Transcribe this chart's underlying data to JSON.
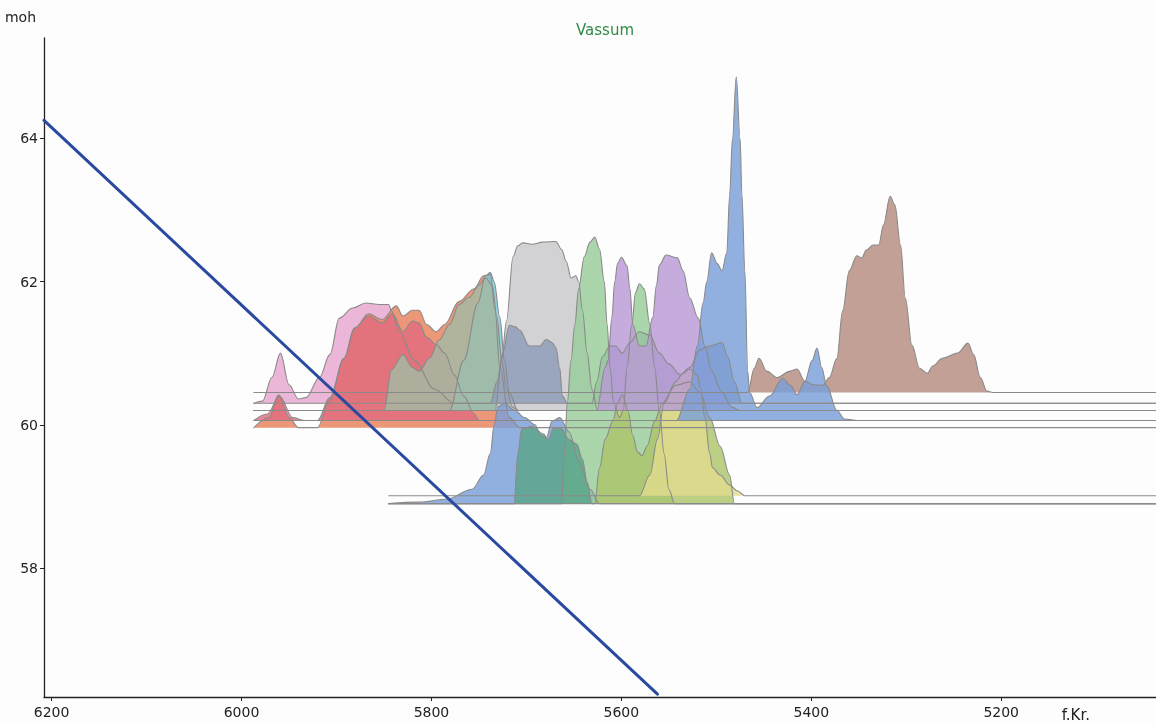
{
  "chart_data": {
    "type": "area",
    "title": "Vassum",
    "xlabel": "f.Kr.",
    "ylabel": "moh",
    "xlim": [
      6208,
      5037
    ],
    "ylim": [
      56.2,
      65.4
    ],
    "xticks": [
      6200,
      6000,
      5800,
      5600,
      5400,
      5200
    ],
    "yticks": [
      58,
      60,
      62,
      64
    ],
    "series": [
      {
        "color": "#b58b7e",
        "x": [
          5987,
          5467,
          5460,
          5455,
          5447,
          5436,
          5422,
          5415,
          5407,
          5398,
          5388,
          5381,
          5373,
          5367,
          5360,
          5352,
          5347,
          5342,
          5335,
          5329,
          5324,
          5317,
          5312,
          5306,
          5301,
          5294,
          5286,
          5278,
          5272,
          5262,
          5246,
          5235,
          5229,
          5222,
          5215,
          5209,
          5037
        ],
        "values": [
          60.45,
          60.45,
          60.79,
          60.93,
          60.75,
          60.66,
          60.75,
          60.78,
          60.61,
          60.56,
          60.55,
          60.66,
          60.93,
          61.59,
          62.15,
          62.36,
          62.33,
          62.44,
          62.51,
          62.51,
          62.79,
          63.19,
          63.07,
          62.51,
          61.77,
          61.11,
          60.79,
          60.72,
          60.82,
          60.93,
          61.0,
          61.14,
          60.98,
          60.66,
          60.47,
          60.45,
          60.45
        ]
      },
      {
        "color": "#e8a6d0",
        "x": [
          5987,
          5978,
          5968,
          5959,
          5950,
          5940,
          5932,
          5918,
          5907,
          5897,
          5883,
          5869,
          5855,
          5845,
          5842,
          5834,
          5818,
          5797,
          5776,
          5037
        ],
        "values": [
          60.3,
          60.33,
          60.66,
          61.0,
          60.56,
          60.36,
          60.38,
          60.66,
          60.98,
          61.49,
          61.63,
          61.7,
          61.68,
          61.68,
          61.59,
          61.3,
          60.9,
          60.5,
          60.3,
          60.3
        ]
      },
      {
        "color": "#e8805a",
        "x": [
          5987,
          5971,
          5961,
          5950,
          5940,
          5920,
          5907,
          5892,
          5881,
          5866,
          5852,
          5837,
          5830,
          5820,
          5813,
          5805,
          5795,
          5786,
          5771,
          5755,
          5745,
          5738,
          5733,
          5728,
          5718,
          5707,
          5037
        ],
        "values": [
          59.96,
          60.1,
          60.42,
          60.1,
          59.96,
          59.96,
          60.35,
          60.93,
          61.35,
          61.55,
          61.47,
          61.66,
          61.52,
          61.6,
          61.6,
          61.4,
          61.3,
          61.4,
          61.72,
          61.9,
          62.08,
          62.1,
          61.6,
          60.8,
          60.1,
          59.96,
          59.96
        ]
      },
      {
        "color": "#e06c7e",
        "x": [
          5987,
          5973,
          5960,
          5946,
          5934,
          5920,
          5907,
          5892,
          5881,
          5866,
          5852,
          5841,
          5830,
          5820,
          5813,
          5805,
          5795,
          5786,
          5776,
          5766,
          5755,
          5750,
          5037
        ],
        "values": [
          60.06,
          60.15,
          60.4,
          60.1,
          60.06,
          60.06,
          60.38,
          60.93,
          61.35,
          61.52,
          61.42,
          61.55,
          61.3,
          61.45,
          61.42,
          61.22,
          61.12,
          61.0,
          60.7,
          60.4,
          60.15,
          60.06,
          60.06
        ]
      },
      {
        "color": "#78c8d8",
        "x": [
          5987,
          5781,
          5766,
          5751,
          5743,
          5738,
          5734,
          5728,
          5723,
          5718,
          5709,
          5037
        ],
        "values": [
          60.2,
          60.2,
          60.9,
          61.7,
          62.08,
          62.13,
          62.0,
          61.5,
          60.9,
          60.45,
          60.2,
          60.2
        ]
      },
      {
        "color": "#a3bba3",
        "x": [
          5987,
          5850,
          5842,
          5830,
          5820,
          5813,
          5802,
          5792,
          5781,
          5771,
          5760,
          5750,
          5743,
          5736,
          5731,
          5726,
          5721,
          5715,
          5709,
          5037
        ],
        "values": [
          60.2,
          60.2,
          60.77,
          60.98,
          60.8,
          60.75,
          60.93,
          61.18,
          61.4,
          61.68,
          61.78,
          61.95,
          62.05,
          61.95,
          61.5,
          60.9,
          60.5,
          60.25,
          60.2,
          60.2
        ]
      },
      {
        "color": "#c8c8cc",
        "x": [
          5987,
          5733,
          5726,
          5721,
          5714,
          5709,
          5704,
          5694,
          5683,
          5669,
          5663,
          5658,
          5653,
          5648,
          5645,
          5641,
          5636,
          5631,
          5625,
          5037
        ],
        "values": [
          60.2,
          60.2,
          60.9,
          61.45,
          62.35,
          62.5,
          62.54,
          62.52,
          62.55,
          62.56,
          62.45,
          62.28,
          62.05,
          62.08,
          62.0,
          61.6,
          61.0,
          60.5,
          60.2,
          60.2
        ]
      },
      {
        "color": "#8e9cb8",
        "x": [
          5987,
          5738,
          5731,
          5725,
          5718,
          5712,
          5707,
          5697,
          5686,
          5679,
          5673,
          5669,
          5665,
          5662,
          5657,
          5631,
          5626,
          5620,
          5612,
          5606,
          5599,
          5591,
          5581,
          5570,
          5560,
          5550,
          5538,
          5528,
          5517,
          5507,
          5494,
          5488,
          5481,
          5473,
          5037
        ],
        "values": [
          60.3,
          60.3,
          60.6,
          61.0,
          61.39,
          61.37,
          61.32,
          61.1,
          61.1,
          61.19,
          61.15,
          61.08,
          60.8,
          60.4,
          60.3,
          60.3,
          60.6,
          60.95,
          61.1,
          61.1,
          61.0,
          61.15,
          61.3,
          61.25,
          61.0,
          60.85,
          60.7,
          60.8,
          61.05,
          61.1,
          61.15,
          60.95,
          60.6,
          60.3,
          60.3
        ]
      },
      {
        "color": "#7a9fd8",
        "x": [
          5845,
          5813,
          5784,
          5757,
          5745,
          5738,
          5734,
          5730,
          5723,
          5712,
          5702,
          5691,
          5685,
          5679,
          5673,
          5665,
          5655,
          5645,
          5633,
          5623,
          5037
        ],
        "values": [
          58.9,
          58.92,
          58.96,
          59.1,
          59.3,
          59.6,
          60.0,
          60.25,
          60.3,
          60.2,
          60.1,
          60.0,
          59.85,
          59.82,
          60.05,
          60.1,
          59.9,
          59.5,
          59.1,
          58.9,
          58.9
        ]
      },
      {
        "color": "#98cc98",
        "x": [
          5845,
          5663,
          5660,
          5657,
          5653,
          5649,
          5645,
          5639,
          5633,
          5628,
          5623,
          5618,
          5615,
          5612,
          5608,
          5602,
          5598,
          5594,
          5589,
          5585,
          5581,
          5576,
          5570,
          5565,
          5560,
          5555,
          5550,
          5544,
          5037
        ],
        "values": [
          58.9,
          58.9,
          59.6,
          60.3,
          60.9,
          61.4,
          61.9,
          62.35,
          62.55,
          62.62,
          62.45,
          62.0,
          61.4,
          60.8,
          60.3,
          60.1,
          60.2,
          60.8,
          61.4,
          61.85,
          61.97,
          61.9,
          61.4,
          60.8,
          60.2,
          59.6,
          59.1,
          58.9,
          58.9
        ]
      },
      {
        "color": "#5aa58a",
        "x": [
          5845,
          5713,
          5709,
          5705,
          5694,
          5682,
          5677,
          5671,
          5663,
          5655,
          5647,
          5641,
          5636,
          5631,
          5037
        ],
        "values": [
          58.9,
          58.9,
          59.6,
          59.94,
          59.98,
          59.87,
          59.79,
          59.96,
          59.94,
          59.79,
          59.73,
          59.52,
          59.2,
          58.9,
          58.9
        ]
      },
      {
        "color": "#acc46a",
        "x": [
          5845,
          5628,
          5623,
          5617,
          5609,
          5604,
          5599,
          5593,
          5588,
          5583,
          5578,
          5573,
          5565,
          5557,
          5543,
          5528,
          5517,
          5507,
          5496,
          5486,
          5481,
          5037
        ],
        "values": [
          58.9,
          58.9,
          59.4,
          59.8,
          60.05,
          60.3,
          60.42,
          60.2,
          59.85,
          59.62,
          59.57,
          59.7,
          60.05,
          60.3,
          60.55,
          60.6,
          60.45,
          60.1,
          59.7,
          59.3,
          58.9,
          58.9
        ]
      },
      {
        "color": "#e2dc8e",
        "x": [
          5845,
          5581,
          5570,
          5562,
          5555,
          5543,
          5535,
          5528,
          5520,
          5517,
          5512,
          5507,
          5504,
          5496,
          5486,
          5478,
          5470,
          5037
        ],
        "values": [
          59.01,
          59.01,
          59.3,
          59.8,
          60.3,
          60.6,
          60.72,
          60.78,
          60.7,
          60.52,
          60.1,
          59.6,
          59.4,
          59.3,
          59.16,
          59.08,
          59.01,
          59.01
        ]
      },
      {
        "color": "#b89ad6",
        "x": [
          5987,
          5626,
          5617,
          5614,
          5610,
          5607,
          5604,
          5600,
          5594,
          5591,
          5588,
          5581,
          5574,
          5567,
          5563,
          5560,
          5553,
          5541,
          5535,
          5528,
          5519,
          5512,
          5505,
          5494,
          5484,
          5475,
          5037
        ],
        "values": [
          60.2,
          60.2,
          60.8,
          60.9,
          61.5,
          62.0,
          62.25,
          62.34,
          62.22,
          61.9,
          61.4,
          61.1,
          61.1,
          61.5,
          61.95,
          62.23,
          62.37,
          62.33,
          62.15,
          61.77,
          61.49,
          61.1,
          60.75,
          60.45,
          60.25,
          60.2,
          60.2
        ]
      },
      {
        "color": "#7a9fd8",
        "x": [
          5987,
          5542,
          5528,
          5520,
          5514,
          5510,
          5505,
          5499,
          5494,
          5489,
          5486,
          5483,
          5479,
          5475,
          5473,
          5470,
          5467,
          5465,
          5457,
          5444,
          5430,
          5422,
          5415,
          5407,
          5399,
          5394,
          5389,
          5384,
          5373,
          5365,
          5351,
          5037
        ],
        "values": [
          60.06,
          60.06,
          60.5,
          61.1,
          61.7,
          62.0,
          62.4,
          62.25,
          62.15,
          62.4,
          63.2,
          64.0,
          64.86,
          64.0,
          63.2,
          62.15,
          60.75,
          60.45,
          60.24,
          60.4,
          60.65,
          60.55,
          60.42,
          60.6,
          60.9,
          61.07,
          60.8,
          60.55,
          60.2,
          60.08,
          60.06,
          60.06
        ]
      },
      {
        "type": "line",
        "color": "#2a4aa0",
        "x": [
          6208,
          5562
        ],
        "values": [
          64.25,
          56.24
        ]
      }
    ]
  }
}
